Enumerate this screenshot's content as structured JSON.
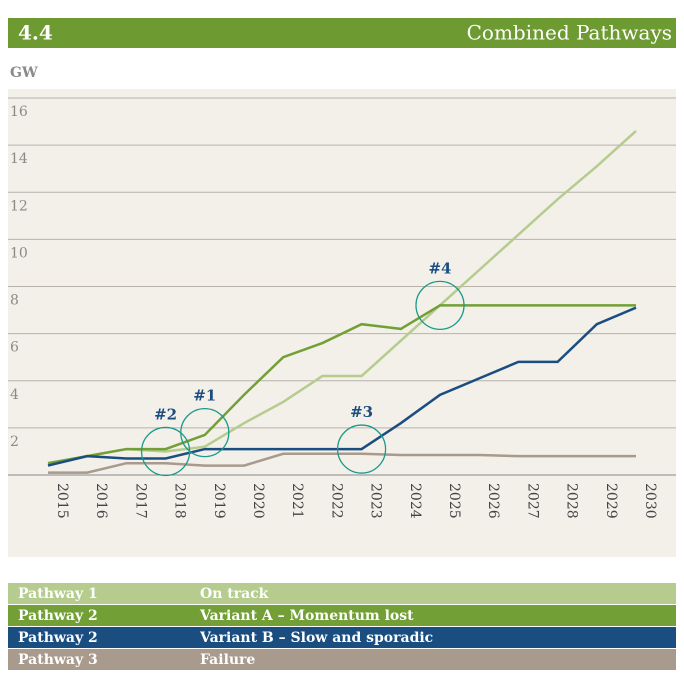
{
  "chart_data": {
    "type": "line",
    "number": "4.4",
    "title": "Combined Pathways",
    "y_label": "GW",
    "categories": [
      "2015",
      "2016",
      "2017",
      "2018",
      "2019",
      "2020",
      "2021",
      "2022",
      "2023",
      "2024",
      "2025",
      "2026",
      "2027",
      "2028",
      "2029",
      "2030"
    ],
    "ylim": [
      0,
      16
    ],
    "yticks": [
      2,
      4,
      6,
      8,
      10,
      12,
      14,
      16
    ],
    "grid": true,
    "series": [
      {
        "pathway": "Pathway 1",
        "name": "On track",
        "color": "#b5cc8e",
        "values": [
          0.5,
          0.8,
          1.1,
          1.0,
          1.2,
          2.2,
          3.1,
          4.2,
          4.2,
          5.7,
          7.2,
          8.7,
          10.2,
          11.7,
          13.1,
          14.6
        ]
      },
      {
        "pathway": "Pathway 2",
        "name": "Variant A – Momentum lost",
        "color": "#72a037",
        "values": [
          0.5,
          0.8,
          1.1,
          1.1,
          1.7,
          3.4,
          5.0,
          5.6,
          6.4,
          6.2,
          7.2,
          7.2,
          7.2,
          7.2,
          7.2,
          7.2
        ]
      },
      {
        "pathway": "Pathway 2",
        "name": "Variant B – Slow and sporadic",
        "color": "#1a4d80",
        "values": [
          0.4,
          0.8,
          0.7,
          0.7,
          1.1,
          1.1,
          1.1,
          1.1,
          1.1,
          2.2,
          3.4,
          4.1,
          4.8,
          4.8,
          6.4,
          7.1
        ]
      },
      {
        "pathway": "Pathway 3",
        "name": "Failure",
        "color": "#a89a8c",
        "values": [
          0.1,
          0.1,
          0.5,
          0.5,
          0.4,
          0.4,
          0.9,
          0.9,
          0.9,
          0.85,
          0.85,
          0.85,
          0.8,
          0.8,
          0.8,
          0.8
        ]
      }
    ],
    "annotations": [
      {
        "label": "#1",
        "x": "2019",
        "y": 1.8
      },
      {
        "label": "#2",
        "x": "2018",
        "y": 1.0
      },
      {
        "label": "#3",
        "x": "2023",
        "y": 1.1
      },
      {
        "label": "#4",
        "x": "2025",
        "y": 7.2
      }
    ]
  }
}
